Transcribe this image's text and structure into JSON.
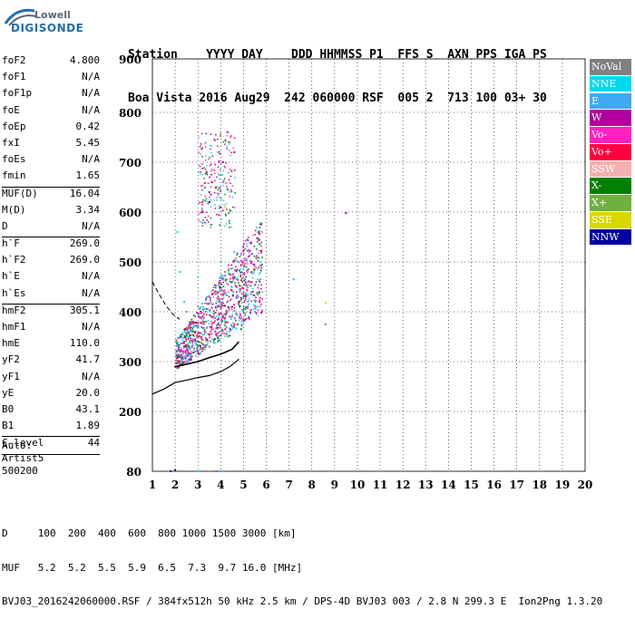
{
  "logo": {
    "line1": "Lowell",
    "line2": "DIGISONDE"
  },
  "header": {
    "line1": "Station    YYYY DAY    DDD HHMMSS P1  FFS S  AXN PPS IGA PS",
    "line2": "Boa Vista 2016 Aug29  242 060000 RSF  005 2  713 100 03+ 30"
  },
  "params": [
    {
      "k": "foF2",
      "v": "4.800"
    },
    {
      "k": "foF1",
      "v": "N/A"
    },
    {
      "k": "foF1p",
      "v": "N/A"
    },
    {
      "k": "foE",
      "v": "N/A"
    },
    {
      "k": "foEp",
      "v": "0.42"
    },
    {
      "k": "fxI",
      "v": "5.45"
    },
    {
      "k": "foEs",
      "v": "N/A"
    },
    {
      "k": "fmin",
      "v": "1.65"
    },
    {
      "sep": true
    },
    {
      "k": "MUF(D)",
      "v": "16.04"
    },
    {
      "k": "M(D)",
      "v": "3.34"
    },
    {
      "k": "D",
      "v": "N/A"
    },
    {
      "sep": true
    },
    {
      "k": "h`F",
      "v": "269.0"
    },
    {
      "k": "h`F2",
      "v": "269.0"
    },
    {
      "k": "h`E",
      "v": "N/A"
    },
    {
      "k": "h`Es",
      "v": "N/A"
    },
    {
      "sep": true
    },
    {
      "k": "hmF2",
      "v": "305.1"
    },
    {
      "k": "hmF1",
      "v": "N/A"
    },
    {
      "k": "hmE",
      "v": "110.0"
    },
    {
      "k": "yF2",
      "v": "41.7"
    },
    {
      "k": "yF1",
      "v": "N/A"
    },
    {
      "k": "yE",
      "v": "20.0"
    },
    {
      "k": "B0",
      "v": "43.1"
    },
    {
      "k": "B1",
      "v": "1.89"
    },
    {
      "sep": true
    },
    {
      "k": "C-level",
      "v": "44"
    },
    {
      "sep": true
    }
  ],
  "auto": {
    "line1": "Auto:",
    "line2": "Artist5",
    "line3": "500200"
  },
  "legend": [
    {
      "label": "NoVal",
      "color": "#808080"
    },
    {
      "label": "NNE",
      "color": "#00d8f0"
    },
    {
      "label": "E",
      "color": "#40a8f0"
    },
    {
      "label": "W",
      "color": "#b000a0"
    },
    {
      "label": "Vo-",
      "color": "#ff20c0"
    },
    {
      "label": "Vo+",
      "color": "#ff0040"
    },
    {
      "label": "SSW",
      "color": "#f4b0b0"
    },
    {
      "label": "X-",
      "color": "#008000"
    },
    {
      "label": "X+",
      "color": "#70b040"
    },
    {
      "label": "SSE",
      "color": "#d8d800"
    },
    {
      "label": "NNW",
      "color": "#0000a0"
    }
  ],
  "bottom": {
    "line1": "D     100  200  400  600  800 1000 1500 3000 [km]",
    "line2": "MUF   5.2  5.2  5.5  5.9  6.5  7.3  9.7 16.0 [MHz]",
    "line3": "BVJ03_2016242060000.RSF / 384fx512h 50 kHz 2.5 km / DPS-4D BVJ03 003 / 2.8 N 299.3 E  Ion2Png 1.3.20"
  },
  "chart_data": {
    "type": "scatter",
    "title": "",
    "xlabel": "",
    "ylabel": "",
    "x_ticks": [
      1,
      2,
      3,
      4,
      5,
      6,
      7,
      8,
      9,
      10,
      11,
      12,
      13,
      14,
      15,
      16,
      17,
      18,
      19,
      20
    ],
    "y_ticks": [
      80,
      200,
      300,
      400,
      500,
      600,
      700,
      800,
      900
    ],
    "xlim": [
      1,
      20
    ],
    "ylim_labels": [
      80,
      900
    ],
    "series": [
      {
        "name": "W",
        "color": "#b000a0",
        "points": [
          [
            2.0,
            290
          ],
          [
            2.3,
            310
          ],
          [
            2.6,
            330
          ],
          [
            3.0,
            350
          ],
          [
            3.3,
            360
          ],
          [
            3.6,
            370
          ],
          [
            3.9,
            385
          ],
          [
            4.2,
            395
          ],
          [
            4.5,
            410
          ],
          [
            4.8,
            420
          ],
          [
            5.1,
            430
          ],
          [
            5.4,
            440
          ],
          [
            5.7,
            420
          ],
          [
            3.2,
            600
          ],
          [
            3.5,
            640
          ],
          [
            3.8,
            650
          ],
          [
            4.1,
            700
          ],
          [
            4.3,
            760
          ],
          [
            4.6,
            720
          ],
          [
            4.0,
            610
          ],
          [
            9.5,
            598
          ]
        ]
      },
      {
        "name": "NNE",
        "color": "#00d8f0",
        "points": [
          [
            2.1,
            560
          ],
          [
            2.2,
            480
          ],
          [
            2.4,
            420
          ],
          [
            3.0,
            470
          ],
          [
            4.0,
            500
          ],
          [
            4.6,
            520
          ],
          [
            4.8,
            390
          ],
          [
            5.5,
            400
          ],
          [
            7.2,
            465
          ],
          [
            3.0,
            80
          ],
          [
            4.1,
            80
          ]
        ]
      },
      {
        "name": "E",
        "color": "#40a8f0",
        "points": [
          [
            2.5,
            400
          ],
          [
            3.0,
            410
          ],
          [
            3.4,
            430
          ],
          [
            4.0,
            450
          ],
          [
            4.5,
            460
          ],
          [
            5.0,
            440
          ],
          [
            5.6,
            410
          ],
          [
            2.8,
            380
          ]
        ]
      },
      {
        "name": "Vo+",
        "color": "#ff0040",
        "points": [
          [
            2.2,
            300
          ],
          [
            2.6,
            315
          ],
          [
            3.0,
            330
          ],
          [
            3.4,
            345
          ],
          [
            3.8,
            355
          ],
          [
            4.2,
            365
          ],
          [
            4.6,
            375
          ],
          [
            5.0,
            385
          ],
          [
            3.2,
            620
          ],
          [
            3.6,
            660
          ]
        ]
      },
      {
        "name": "Vo-",
        "color": "#ff20c0",
        "points": [
          [
            2.4,
            330
          ],
          [
            2.8,
            345
          ],
          [
            3.3,
            360
          ],
          [
            3.9,
            375
          ],
          [
            4.4,
            390
          ],
          [
            5.2,
            410
          ]
        ]
      },
      {
        "name": "X-",
        "color": "#008000",
        "points": [
          [
            2.3,
            305
          ],
          [
            2.8,
            318
          ],
          [
            3.3,
            330
          ],
          [
            3.9,
            342
          ],
          [
            4.4,
            352
          ],
          [
            4.9,
            365
          ]
        ]
      },
      {
        "name": "X+",
        "color": "#70b040",
        "points": [
          [
            2.5,
            312
          ],
          [
            3.1,
            325
          ],
          [
            3.7,
            338
          ],
          [
            4.3,
            350
          ]
        ]
      },
      {
        "name": "SSE",
        "color": "#d8d800",
        "points": [
          [
            8.6,
            418
          ],
          [
            4.2,
            610
          ]
        ]
      },
      {
        "name": "NNW",
        "color": "#0000a0",
        "points": [
          [
            1.8,
            80
          ],
          [
            2.0,
            82
          ],
          [
            3.5,
            620
          ],
          [
            4.3,
            645
          ]
        ]
      },
      {
        "name": "NoVal",
        "color": "#808080",
        "points": [
          [
            8.6,
            375
          ],
          [
            3.8,
            80
          ]
        ]
      }
    ],
    "profile_curve": {
      "color": "#000000",
      "points": [
        [
          1.0,
          235
        ],
        [
          1.5,
          245
        ],
        [
          2.0,
          258
        ],
        [
          2.5,
          263
        ],
        [
          3.0,
          268
        ],
        [
          3.5,
          272
        ],
        [
          4.0,
          280
        ],
        [
          4.4,
          290
        ],
        [
          4.8,
          305
        ]
      ]
    },
    "dashed_curve": {
      "color": "#000000",
      "points": [
        [
          1.0,
          460
        ],
        [
          1.3,
          435
        ],
        [
          1.6,
          412
        ],
        [
          1.9,
          395
        ],
        [
          2.2,
          385
        ]
      ]
    },
    "trace_curve": {
      "color": "#000000",
      "points": [
        [
          2.0,
          290
        ],
        [
          2.5,
          295
        ],
        [
          3.0,
          300
        ],
        [
          3.5,
          308
        ],
        [
          4.0,
          315
        ],
        [
          4.5,
          325
        ],
        [
          4.8,
          340
        ]
      ]
    }
  }
}
